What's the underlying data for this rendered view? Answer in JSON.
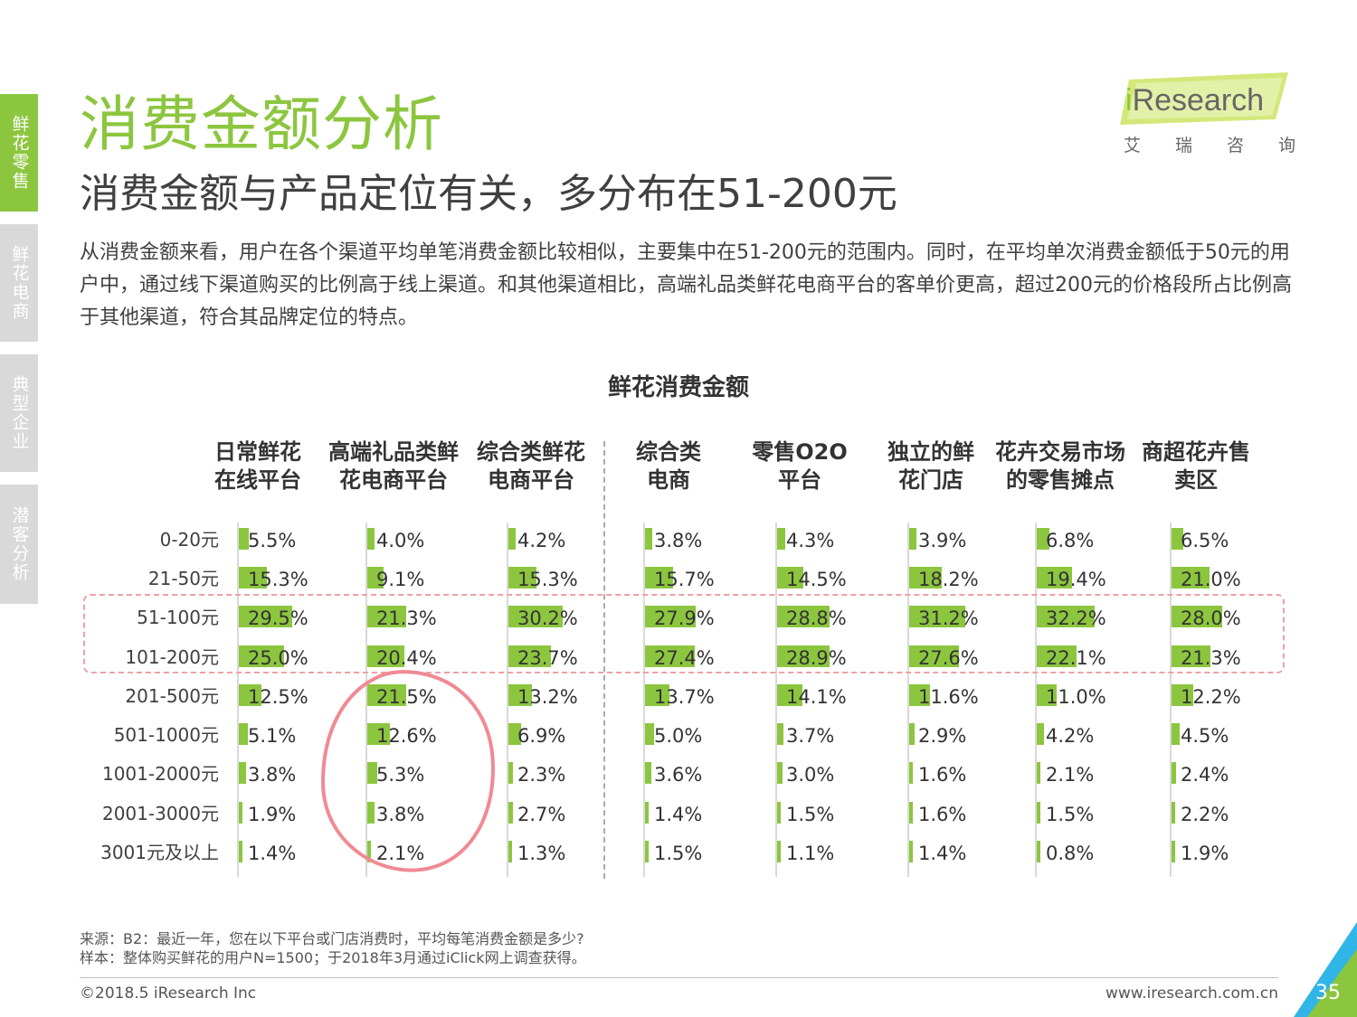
{
  "side_tabs": [
    "鲜花零售",
    "鲜花电商",
    "典型企业",
    "潜客分析"
  ],
  "page_title": "消费金额分析",
  "subtitle": "消费金额与产品定位有关，多分布在51-200元",
  "intro": "从消费金额来看，用户在各个渠道平均单笔消费金额比较相似，主要集中在51-200元的范围内。同时，在平均单次消费金额低于50元的用户中，通过线下渠道购买的比例高于线上渠道。和其他渠道相比，高端礼品类鲜花电商平台的客单价更高，超过200元的价格段所占比例高于其他渠道，符合其品牌定位的特点。",
  "logo": {
    "i": "i",
    "text": "Research",
    "sub": [
      "艾",
      "瑞",
      "咨",
      "询"
    ]
  },
  "colors": {
    "accent": "#8cc63f",
    "highlight": "#f0a0a6",
    "text": "#404040"
  },
  "chart_data": {
    "type": "bar",
    "title": "鲜花消费金额",
    "categories": [
      "0-20元",
      "21-50元",
      "51-100元",
      "101-200元",
      "201-500元",
      "501-1000元",
      "1001-2000元",
      "2001-3000元",
      "3001元及以上"
    ],
    "unit": "%",
    "series": [
      {
        "name": "日常鲜花\n在线平台",
        "values": [
          5.5,
          15.3,
          29.5,
          25.0,
          12.5,
          5.1,
          3.8,
          1.9,
          1.4
        ]
      },
      {
        "name": "高端礼品类鲜\n花电商平台",
        "values": [
          4.0,
          9.1,
          21.3,
          20.4,
          21.5,
          12.6,
          5.3,
          3.8,
          2.1
        ]
      },
      {
        "name": "综合类鲜花\n电商平台",
        "values": [
          4.2,
          15.3,
          30.2,
          23.7,
          13.2,
          6.9,
          2.3,
          2.7,
          1.3
        ]
      },
      {
        "name": "综合类\n电商",
        "values": [
          3.8,
          15.7,
          27.9,
          27.4,
          13.7,
          5.0,
          3.6,
          1.4,
          1.5
        ]
      },
      {
        "name": "零售O2O\n平台",
        "values": [
          4.3,
          14.5,
          28.8,
          28.9,
          14.1,
          3.7,
          3.0,
          1.5,
          1.1
        ]
      },
      {
        "name": "独立的鲜\n花门店",
        "values": [
          3.9,
          18.2,
          31.2,
          27.6,
          11.6,
          2.9,
          1.6,
          1.6,
          1.4
        ]
      },
      {
        "name": "花卉交易市场\n的零售摊点",
        "values": [
          6.8,
          19.4,
          32.2,
          22.1,
          11.0,
          4.2,
          2.1,
          1.5,
          0.8
        ]
      },
      {
        "name": "商超花卉售\n卖区",
        "values": [
          6.5,
          21.0,
          28.0,
          21.3,
          12.2,
          4.5,
          2.4,
          2.2,
          1.9
        ]
      }
    ],
    "highlight_rows": [
      "51-100元",
      "101-200元"
    ],
    "circled_series": "高端礼品类鲜\n花电商平台"
  },
  "notes": {
    "source": "来源：B2：最近一年，您在以下平台或门店消费时，平均每笔消费金额是多少?",
    "sample": "样本：整体购买鲜花的用户N=1500；于2018年3月通过iClick网上调查获得。"
  },
  "footer": {
    "copyright": "©2018.5 iResearch Inc",
    "website": "www.iresearch.com.cn",
    "page_number": "35"
  }
}
